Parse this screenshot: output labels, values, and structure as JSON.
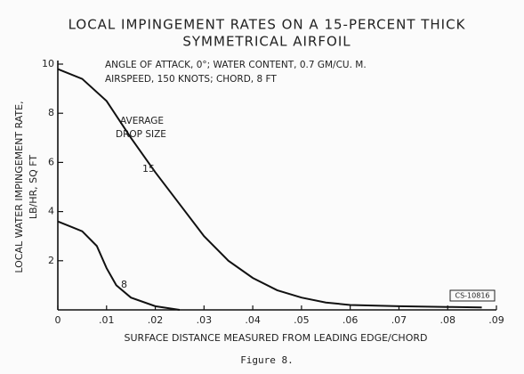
{
  "chart_data": {
    "type": "line",
    "title": [
      "LOCAL IMPINGEMENT RATES ON A 15-PERCENT THICK",
      "SYMMETRICAL AIRFOIL"
    ],
    "annotations": [
      "ANGLE OF ATTACK, 0°;  WATER CONTENT, 0.7 GM/CU. M.",
      "AIRSPEED, 150 KNOTS;     CHORD, 8 FT",
      "AVERAGE",
      "DROP SIZE",
      "CS-10816"
    ],
    "ylabel": [
      "LOCAL WATER IMPINGEMENT RATE,",
      "LB/HR, SQ FT"
    ],
    "xlabel": "SURFACE DISTANCE MEASURED FROM LEADING EDGE/CHORD",
    "caption": "Figure 8.",
    "xlim": [
      0,
      0.09
    ],
    "ylim": [
      0,
      10
    ],
    "xticks": [
      0,
      {
        "value": 0.01,
        "label": ".01"
      },
      {
        "value": 0.02,
        "label": ".02"
      },
      {
        "value": 0.03,
        "label": ".03"
      },
      {
        "value": 0.04,
        "label": ".04"
      },
      {
        "value": 0.05,
        "label": ".05"
      },
      {
        "value": 0.06,
        "label": ".06"
      },
      {
        "value": 0.07,
        "label": ".07"
      },
      {
        "value": 0.08,
        "label": ".08"
      },
      {
        "value": 0.09,
        "label": ".09"
      }
    ],
    "yticks": [
      2,
      4,
      6,
      8,
      10
    ],
    "grid": false,
    "series": [
      {
        "name": "15",
        "color": "#111111",
        "x": [
          0,
          0.005,
          0.01,
          0.015,
          0.02,
          0.025,
          0.03,
          0.035,
          0.04,
          0.045,
          0.05,
          0.055,
          0.06,
          0.07,
          0.08,
          0.087
        ],
        "values": [
          9.8,
          9.4,
          8.5,
          7.0,
          5.6,
          4.3,
          3.0,
          2.0,
          1.3,
          0.8,
          0.5,
          0.3,
          0.2,
          0.15,
          0.12,
          0.1
        ]
      },
      {
        "name": "8",
        "color": "#111111",
        "x": [
          0,
          0.005,
          0.008,
          0.01,
          0.012,
          0.015,
          0.02,
          0.025
        ],
        "values": [
          3.6,
          3.2,
          2.6,
          1.7,
          1.0,
          0.5,
          0.15,
          0
        ]
      }
    ]
  }
}
